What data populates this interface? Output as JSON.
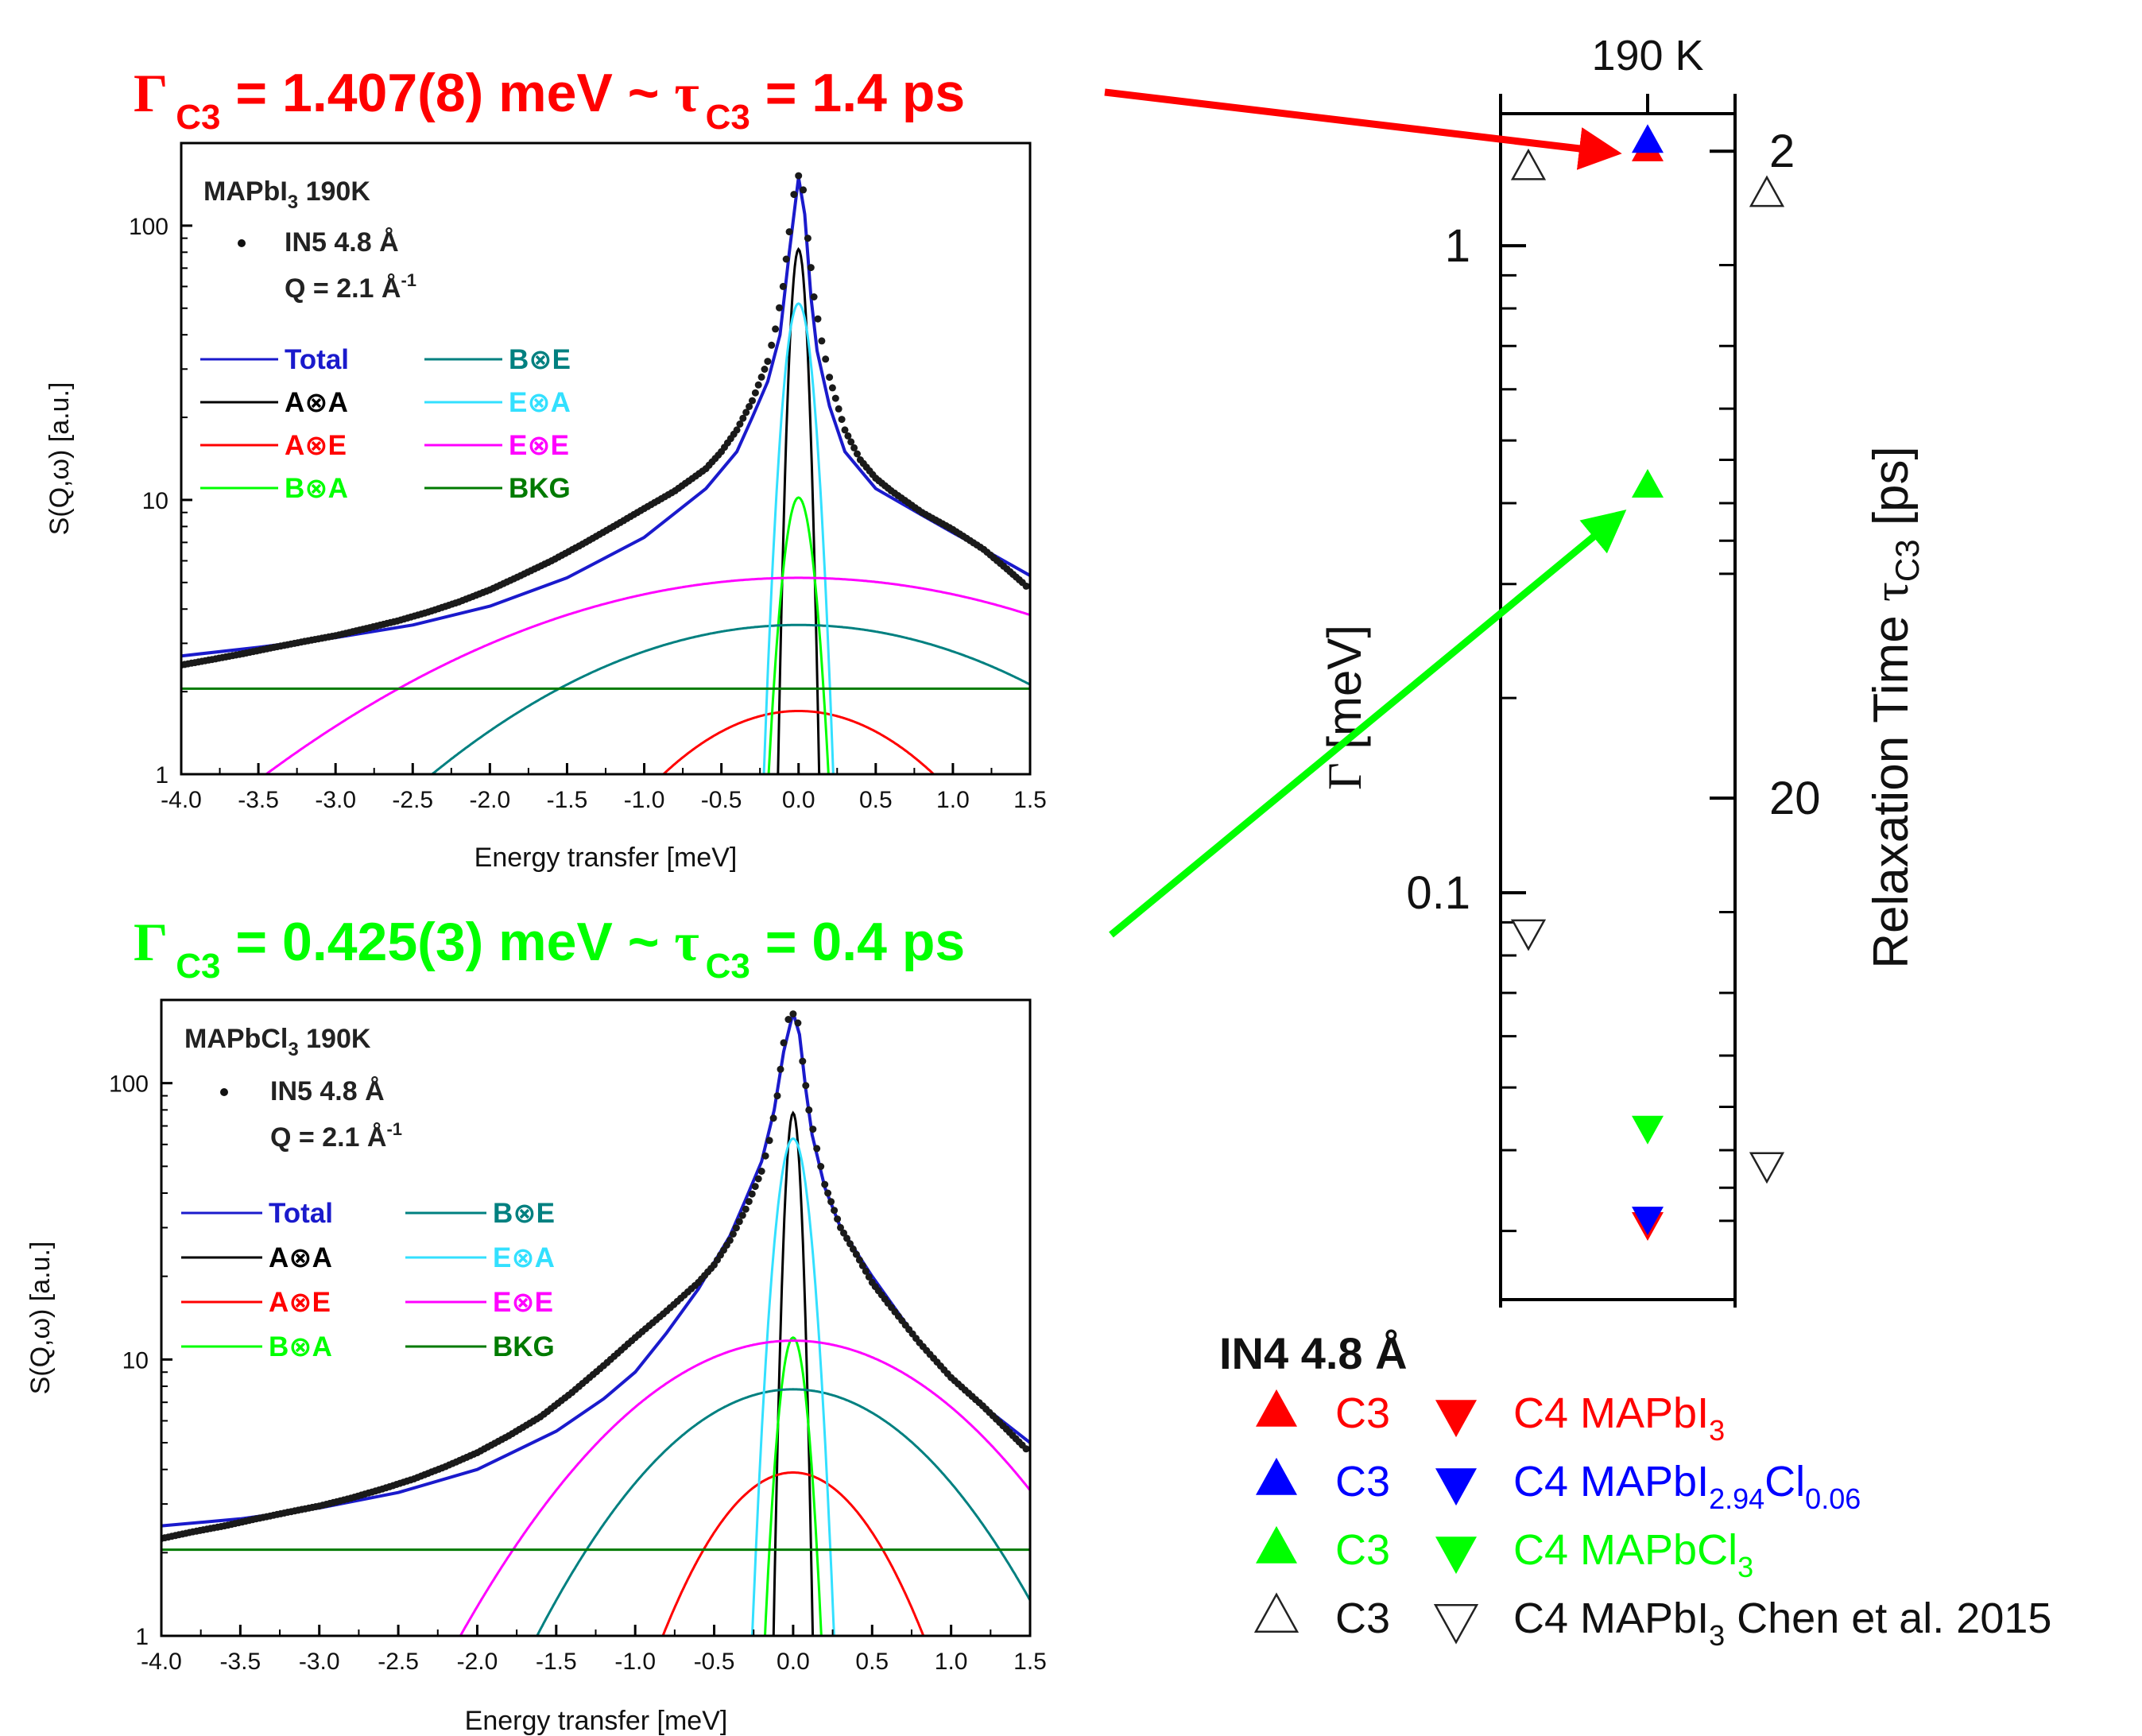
{
  "colors": {
    "red": "#ff0000",
    "green": "#00ff00",
    "blue": "#0000ff",
    "black": "#000000",
    "teal": "#008080",
    "cyan": "#33e0ff",
    "magenta": "#ff00ff",
    "darkgreen": "#007a00",
    "total": "#1a1acc",
    "data": "#1a1a1a"
  },
  "annotations": {
    "top": {
      "gamma": "Γ",
      "sub": "C3",
      "mid": " = 1.407(8) meV ~ ",
      "tau": "τ",
      "tail": " = 1.4 ps"
    },
    "bottom": {
      "gamma": "Γ",
      "sub": "C3",
      "mid": " = 0.425(3) meV ~ ",
      "tau": "τ",
      "tail": " = 0.4 ps"
    }
  },
  "chart_data": [
    {
      "type": "line",
      "panel": "top",
      "sample": "MAPbI",
      "sample_sub": "3",
      "sample_temp": " 190K",
      "instrument": "IN5 4.8 Å",
      "q_label": "Q = 2.1 Å",
      "q_sup": "-1",
      "xlabel": "Energy transfer [meV]",
      "ylabel": "S(Q,ω) [a.u.]",
      "xlim": [
        -4.0,
        1.5
      ],
      "ylim": [
        1,
        200
      ],
      "yscale": "log",
      "xticks": [
        "-4.0",
        "-3.5",
        "-3.0",
        "-2.5",
        "-2.0",
        "-1.5",
        "-1.0",
        "-0.5",
        "0.0",
        "0.5",
        "1.0",
        "1.5"
      ],
      "yticks": [
        "1",
        "10",
        "100"
      ],
      "legend": [
        "Total",
        "A⊗A",
        "A⊗E",
        "B⊗A",
        "B⊗E",
        "E⊗A",
        "E⊗E",
        "BKG"
      ],
      "components": [
        {
          "name": "A⊗A",
          "shape": "gaussian",
          "amp": 82,
          "center": 0.0,
          "sigma": 0.045
        },
        {
          "name": "A⊗E",
          "shape": "gaussian",
          "amp": 1.7,
          "center": 0.0,
          "sigma": 0.85
        },
        {
          "name": "B⊗A",
          "shape": "gaussian",
          "amp": 10.2,
          "center": 0.0,
          "sigma": 0.09
        },
        {
          "name": "B⊗E",
          "shape": "gaussian",
          "amp": 3.5,
          "center": 0.0,
          "sigma": 1.5
        },
        {
          "name": "E⊗A",
          "shape": "gaussian",
          "amp": 52,
          "center": 0.0,
          "sigma": 0.08
        },
        {
          "name": "E⊗E",
          "shape": "gaussian",
          "amp": 5.2,
          "center": 0.0,
          "sigma": 1.9
        },
        {
          "name": "BKG",
          "shape": "constant",
          "amp": 2.05
        }
      ],
      "total_points": {
        "x": [
          -4.0,
          -3.5,
          -3.0,
          -2.5,
          -2.0,
          -1.5,
          -1.0,
          -0.6,
          -0.4,
          -0.3,
          -0.2,
          -0.12,
          -0.06,
          0.0,
          0.04,
          0.08,
          0.12,
          0.2,
          0.3,
          0.5,
          0.8,
          1.0,
          1.2,
          1.5
        ],
        "y": [
          2.7,
          2.9,
          3.15,
          3.5,
          4.1,
          5.2,
          7.3,
          11.0,
          15.0,
          20.0,
          27.0,
          40.0,
          80.0,
          150.0,
          110.0,
          55.0,
          35.0,
          22.0,
          15.0,
          11.0,
          8.8,
          7.6,
          6.6,
          5.3
        ]
      },
      "data_points": {
        "x": [
          -4.0,
          -3.8,
          -3.6,
          -3.4,
          -3.2,
          -3.0,
          -2.8,
          -2.6,
          -2.4,
          -2.2,
          -2.0,
          -1.8,
          -1.6,
          -1.4,
          -1.2,
          -1.0,
          -0.8,
          -0.6,
          -0.5,
          -0.4,
          -0.3,
          -0.2,
          -0.15,
          -0.1,
          -0.06,
          -0.03,
          0.0,
          0.03,
          0.06,
          0.1,
          0.15,
          0.2,
          0.3,
          0.4,
          0.5,
          0.6,
          0.8,
          1.0,
          1.2,
          1.35,
          1.45,
          1.5
        ],
        "y": [
          2.5,
          2.62,
          2.75,
          2.9,
          3.05,
          3.2,
          3.4,
          3.62,
          3.9,
          4.25,
          4.7,
          5.3,
          6.0,
          6.9,
          8.0,
          9.3,
          10.8,
          13.0,
          15.0,
          18.0,
          23.0,
          32.0,
          42.0,
          60.0,
          95.0,
          130.0,
          152.0,
          135.0,
          90.0,
          55.0,
          38.0,
          28.0,
          18.0,
          14.0,
          12.0,
          10.8,
          9.0,
          7.8,
          6.6,
          5.6,
          5.0,
          4.7
        ]
      }
    },
    {
      "type": "line",
      "panel": "bottom",
      "sample": "MAPbCl",
      "sample_sub": "3",
      "sample_temp": " 190K",
      "instrument": "IN5 4.8 Å",
      "q_label": "Q = 2.1 Å",
      "q_sup": "-1",
      "xlabel": "Energy transfer [meV]",
      "ylabel": "S(Q,ω) [a.u.]",
      "xlim": [
        -4.0,
        1.5
      ],
      "ylim": [
        1,
        200
      ],
      "yscale": "log",
      "xticks": [
        "-4.0",
        "-3.5",
        "-3.0",
        "-2.5",
        "-2.0",
        "-1.5",
        "-1.0",
        "-0.5",
        "0.0",
        "0.5",
        "1.0",
        "1.5"
      ],
      "yticks": [
        "1",
        "10",
        "100"
      ],
      "legend": [
        "Total",
        "A⊗A",
        "A⊗E",
        "B⊗A",
        "B⊗E",
        "E⊗A",
        "E⊗E",
        "BKG"
      ],
      "components": [
        {
          "name": "A⊗A",
          "shape": "gaussian",
          "amp": 78,
          "center": 0.0,
          "sigma": 0.042
        },
        {
          "name": "A⊗E",
          "shape": "gaussian",
          "amp": 3.9,
          "center": 0.0,
          "sigma": 0.5
        },
        {
          "name": "B⊗A",
          "shape": "gaussian",
          "amp": 12,
          "center": 0.0,
          "sigma": 0.08
        },
        {
          "name": "B⊗E",
          "shape": "gaussian",
          "amp": 7.8,
          "center": 0.0,
          "sigma": 0.8
        },
        {
          "name": "E⊗A",
          "shape": "gaussian",
          "amp": 63,
          "center": 0.0,
          "sigma": 0.09
        },
        {
          "name": "E⊗E",
          "shape": "gaussian",
          "amp": 11.7,
          "center": 0.0,
          "sigma": 0.95
        },
        {
          "name": "BKG",
          "shape": "constant",
          "amp": 2.05
        }
      ],
      "total_points": {
        "x": [
          -4.0,
          -3.5,
          -3.0,
          -2.5,
          -2.0,
          -1.5,
          -1.2,
          -1.0,
          -0.8,
          -0.6,
          -0.4,
          -0.3,
          -0.2,
          -0.12,
          -0.06,
          0.0,
          0.04,
          0.08,
          0.12,
          0.2,
          0.3,
          0.5,
          0.8,
          1.0,
          1.2,
          1.5
        ],
        "y": [
          2.5,
          2.65,
          2.9,
          3.3,
          4.0,
          5.5,
          7.2,
          9.0,
          12.5,
          18.0,
          28.0,
          38.0,
          52.0,
          80.0,
          130.0,
          180.0,
          150.0,
          95.0,
          65.0,
          42.0,
          30.0,
          20.0,
          11.5,
          8.5,
          6.8,
          5.0
        ]
      },
      "data_points": {
        "x": [
          -4.0,
          -3.8,
          -3.6,
          -3.4,
          -3.2,
          -3.0,
          -2.8,
          -2.6,
          -2.4,
          -2.2,
          -2.0,
          -1.8,
          -1.6,
          -1.4,
          -1.2,
          -1.0,
          -0.8,
          -0.6,
          -0.5,
          -0.4,
          -0.3,
          -0.2,
          -0.15,
          -0.1,
          -0.06,
          -0.03,
          0.0,
          0.03,
          0.06,
          0.1,
          0.15,
          0.2,
          0.3,
          0.4,
          0.5,
          0.6,
          0.8,
          1.0,
          1.2,
          1.35,
          1.45,
          1.5
        ],
        "y": [
          2.25,
          2.38,
          2.5,
          2.65,
          2.8,
          2.95,
          3.15,
          3.4,
          3.7,
          4.1,
          4.6,
          5.3,
          6.2,
          7.6,
          9.5,
          12.0,
          15.0,
          19.0,
          22.0,
          27.0,
          35.0,
          48.0,
          62.0,
          90.0,
          140.0,
          170.0,
          178.0,
          165.0,
          120.0,
          80.0,
          58.0,
          43.0,
          30.0,
          24.0,
          19.0,
          16.0,
          11.5,
          8.6,
          6.8,
          5.6,
          4.9,
          4.6
        ]
      }
    },
    {
      "type": "scatter",
      "panel": "right",
      "top_label": "190 K",
      "ylabel_left_symbol": "Γ",
      "ylabel_left_text": " [meV]",
      "ylabel_right_text": "Relaxation Time ",
      "ylabel_right_symbol": "τ",
      "ylabel_right_sub": "C3",
      "ylabel_right_unit": " [ps]",
      "yscale": "log",
      "ylim": [
        0.0235,
        1.6
      ],
      "left_ticks": [
        "1",
        "0.1"
      ],
      "right_ticks": [
        "2",
        "20"
      ],
      "legend_title": "IN4 4.8 Å",
      "legend_rows": [
        {
          "c3": "C3",
          "c4": "C4 ",
          "sample": "MAPbI",
          "sub": "3",
          "tail": "",
          "color": "#ff0000"
        },
        {
          "c3": "C3",
          "c4": "C4 ",
          "sample": "MAPbI",
          "sub": "2.94",
          "tail": "Cl",
          "sub2": "0.06",
          "color": "#0000ff"
        },
        {
          "c3": "C3",
          "c4": "C4 ",
          "sample": "MAPbCl",
          "sub": "3",
          "tail": "",
          "color": "#00ff00"
        },
        {
          "c3": "C3",
          "c4": "C4 ",
          "sample": "MAPbI",
          "sub": "3",
          "tail": " Chen et al. 2015",
          "color": "open"
        }
      ],
      "points": [
        {
          "series": "C3 MAPbI3",
          "marker": "up",
          "fill": "#ff0000",
          "x": 0,
          "y": 1.407
        },
        {
          "series": "C3 MAPbI2.94Cl0.06",
          "marker": "up",
          "fill": "#0000ff",
          "x": 0,
          "y": 1.45
        },
        {
          "series": "C4 MAPbI3",
          "marker": "down",
          "fill": "#ff0000",
          "x": 0,
          "y": 0.0308
        },
        {
          "series": "C4 MAPbI2.94Cl0.06",
          "marker": "down",
          "fill": "#0000ff",
          "x": 0,
          "y": 0.0314
        },
        {
          "series": "C3 MAPbCl3",
          "marker": "up",
          "fill": "#00ff00",
          "x": 0,
          "y": 0.425
        },
        {
          "series": "C4 MAPbCl3",
          "marker": "down",
          "fill": "#00ff00",
          "x": 0,
          "y": 0.0434
        },
        {
          "series": "C3 MAPbI3 Chen et al. 2015",
          "marker": "up",
          "fill": "open",
          "x": -1,
          "y": 1.32
        },
        {
          "series": "C3 MAPbI3 Chen et al. 2015",
          "marker": "up",
          "fill": "open",
          "x": 1,
          "y": 1.2
        },
        {
          "series": "C4 MAPbI3 Chen et al. 2015",
          "marker": "down",
          "fill": "open",
          "x": -1,
          "y": 0.087
        },
        {
          "series": "C4 MAPbI3 Chen et al. 2015",
          "marker": "down",
          "fill": "open",
          "x": 1,
          "y": 0.038
        }
      ]
    }
  ]
}
